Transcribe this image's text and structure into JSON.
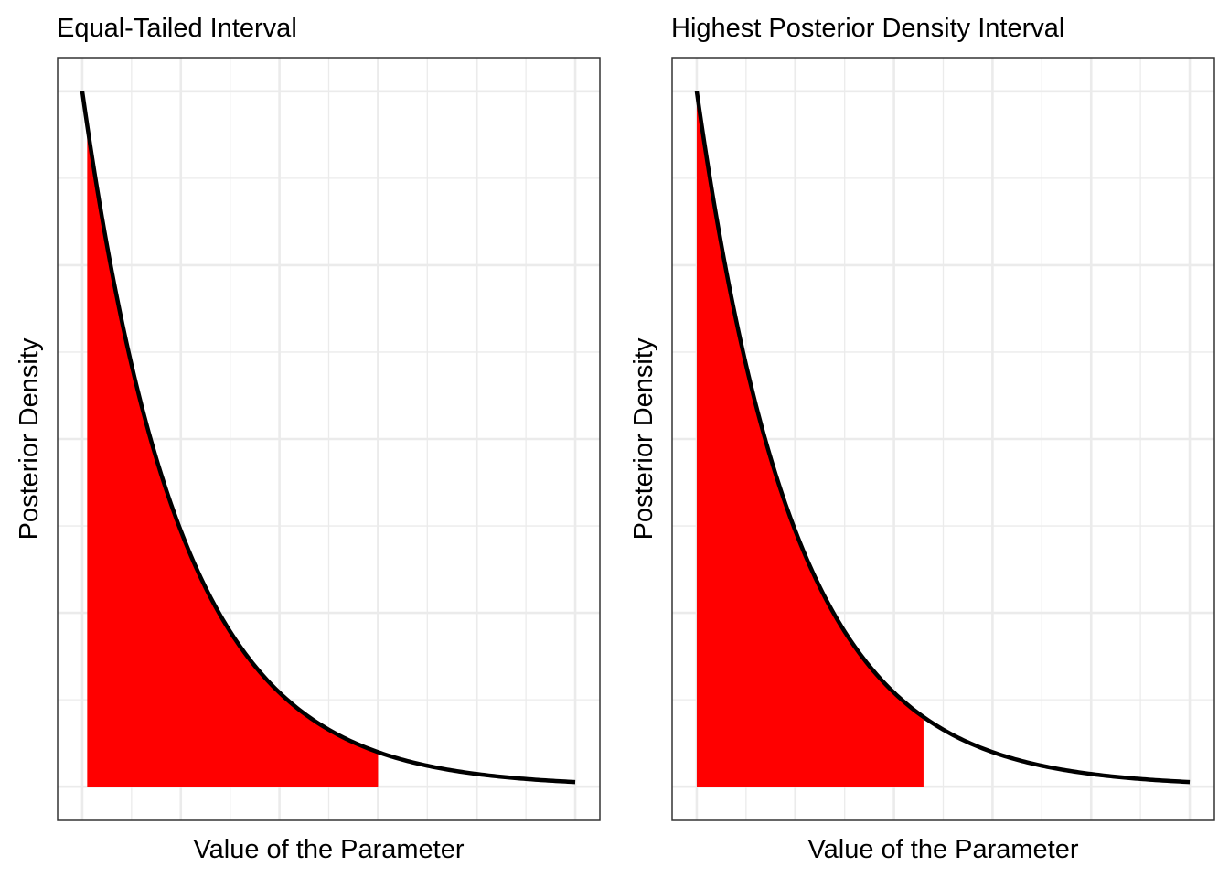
{
  "chart_data": [
    {
      "type": "area",
      "title": "Equal-Tailed Interval",
      "xlabel": "Value of the Parameter",
      "ylabel": "Posterior Density",
      "xlim": [
        -0.25,
        5.25
      ],
      "ylim": [
        -0.1935,
        4.1935
      ],
      "grid": true,
      "tick_labels_shown": false,
      "curve": {
        "description": "exponential decay density",
        "rate": 1,
        "peak": 4,
        "x": [
          0,
          0.25,
          0.5,
          0.75,
          1,
          1.25,
          1.5,
          1.75,
          2,
          2.25,
          2.5,
          2.75,
          3,
          3.25,
          3.5,
          3.75,
          4,
          4.25,
          4.5,
          4.75,
          5
        ],
        "y": [
          4.0,
          3.115,
          2.426,
          1.89,
          1.472,
          1.146,
          0.893,
          0.695,
          0.541,
          0.422,
          0.328,
          0.256,
          0.199,
          0.155,
          0.121,
          0.094,
          0.073,
          0.057,
          0.044,
          0.035,
          0.027
        ]
      },
      "shaded_interval": {
        "from": 0.05,
        "to": 3.0,
        "color": "#FF0000"
      },
      "line_color": "#000000"
    },
    {
      "type": "area",
      "title": "Highest Posterior Density Interval",
      "xlabel": "Value of the Parameter",
      "ylabel": "Posterior Density",
      "xlim": [
        -0.25,
        5.25
      ],
      "ylim": [
        -0.1935,
        4.1935
      ],
      "grid": true,
      "tick_labels_shown": false,
      "curve": {
        "description": "exponential decay density",
        "rate": 1,
        "peak": 4,
        "x": [
          0,
          0.25,
          0.5,
          0.75,
          1,
          1.25,
          1.5,
          1.75,
          2,
          2.25,
          2.5,
          2.75,
          3,
          3.25,
          3.5,
          3.75,
          4,
          4.25,
          4.5,
          4.75,
          5
        ],
        "y": [
          4.0,
          3.115,
          2.426,
          1.89,
          1.472,
          1.146,
          0.893,
          0.695,
          0.541,
          0.422,
          0.328,
          0.256,
          0.199,
          0.155,
          0.121,
          0.094,
          0.073,
          0.057,
          0.044,
          0.035,
          0.027
        ]
      },
      "shaded_interval": {
        "from": 0.0,
        "to": 2.3,
        "color": "#FF0000"
      },
      "line_color": "#000000"
    }
  ]
}
